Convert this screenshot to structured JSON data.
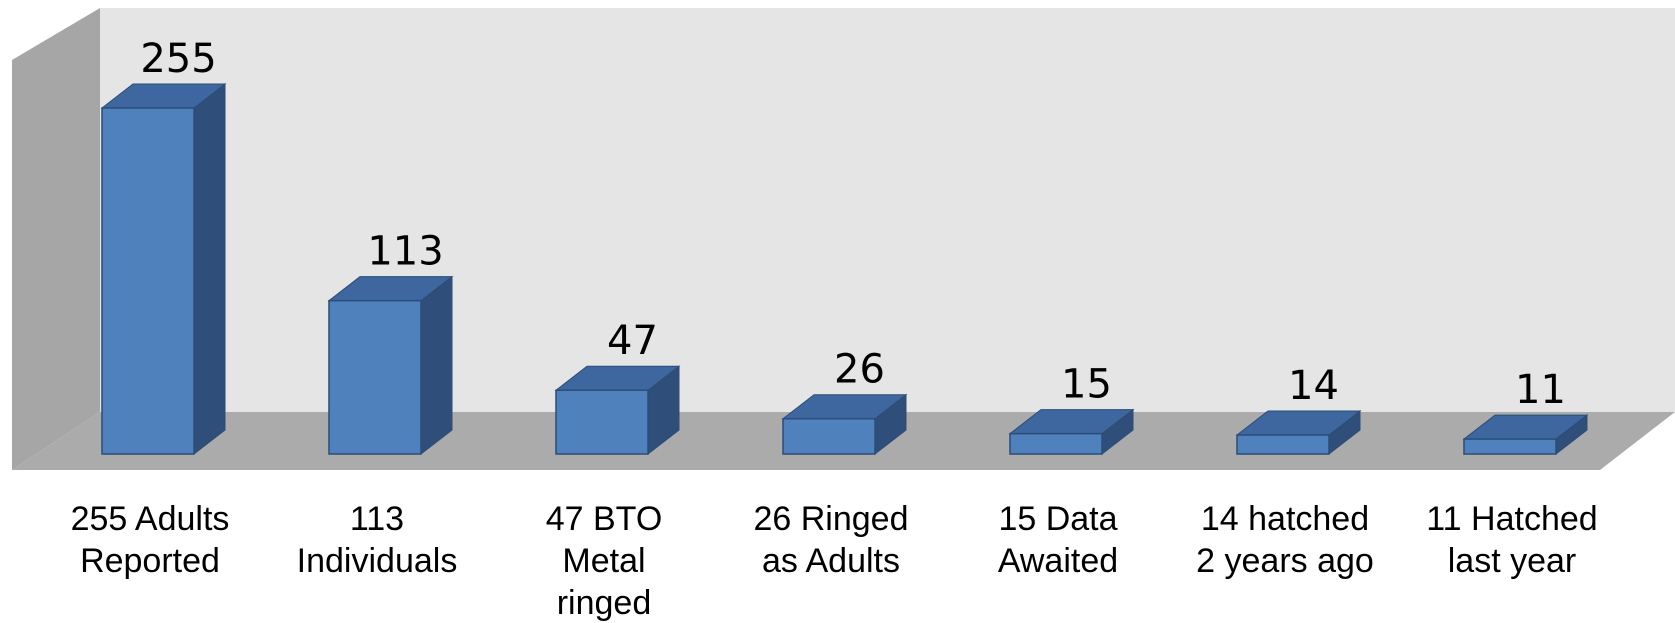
{
  "chart_data": {
    "type": "bar",
    "three_d": true,
    "categories": [
      [
        "255 Adults",
        "Reported"
      ],
      [
        "113",
        "Individuals"
      ],
      [
        "47 BTO",
        "Metal",
        "ringed"
      ],
      [
        "26 Ringed",
        "as Adults"
      ],
      [
        "15 Data",
        "Awaited"
      ],
      [
        "14 hatched",
        "2 years ago"
      ],
      [
        "11 Hatched",
        "last year"
      ]
    ],
    "values": [
      255,
      113,
      47,
      26,
      15,
      14,
      11
    ],
    "data_labels": [
      "255",
      "113",
      "47",
      "26",
      "15",
      "14",
      "11"
    ],
    "ylim": [
      0,
      255
    ],
    "grid": false,
    "legend": "none"
  },
  "colors": {
    "bar_front": "#4f81bd",
    "bar_side": "#2f4f7a",
    "bar_top": "#3d679e",
    "bar_edge": "#2c4d77",
    "back_wall": "#e5e5e5",
    "side_wall": "#a6a6a6",
    "floor": "#ababab"
  }
}
